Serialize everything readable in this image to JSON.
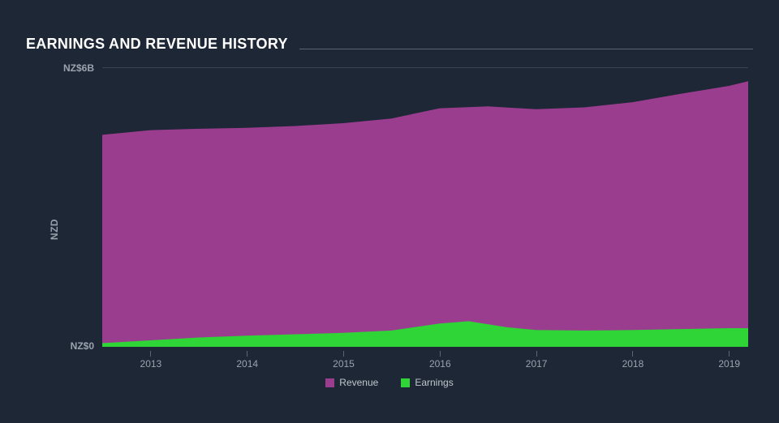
{
  "title": "EARNINGS AND REVENUE HISTORY",
  "chart": {
    "type": "area",
    "background_color": "#1d2735",
    "grid_color": "#3a4350",
    "tick_color": "#5c6470",
    "label_color": "#9aa3ae",
    "label_fontsize": 12,
    "title_color": "#ffffff",
    "title_fontsize": 18,
    "y_axis": {
      "title": "NZD",
      "min": 0,
      "max": 6,
      "top_label": "NZ$6B",
      "bottom_label": "NZ$0",
      "gridlines": [
        0,
        6
      ]
    },
    "x_axis": {
      "domain_min": 2012.5,
      "domain_max": 2019.2,
      "ticks": [
        2013,
        2014,
        2015,
        2016,
        2017,
        2018,
        2019
      ]
    },
    "series": [
      {
        "name": "Revenue",
        "color": "#9a3d8f",
        "fill_opacity": 1.0,
        "points": [
          {
            "x": 2012.5,
            "y": 4.55
          },
          {
            "x": 2013.0,
            "y": 4.65
          },
          {
            "x": 2013.5,
            "y": 4.68
          },
          {
            "x": 2014.0,
            "y": 4.7
          },
          {
            "x": 2014.5,
            "y": 4.74
          },
          {
            "x": 2015.0,
            "y": 4.8
          },
          {
            "x": 2015.5,
            "y": 4.9
          },
          {
            "x": 2016.0,
            "y": 5.12
          },
          {
            "x": 2016.5,
            "y": 5.16
          },
          {
            "x": 2017.0,
            "y": 5.1
          },
          {
            "x": 2017.5,
            "y": 5.14
          },
          {
            "x": 2018.0,
            "y": 5.25
          },
          {
            "x": 2018.5,
            "y": 5.43
          },
          {
            "x": 2019.0,
            "y": 5.6
          },
          {
            "x": 2019.2,
            "y": 5.7
          }
        ]
      },
      {
        "name": "Earnings",
        "color": "#2fd436",
        "fill_opacity": 1.0,
        "points": [
          {
            "x": 2012.5,
            "y": 0.08
          },
          {
            "x": 2013.0,
            "y": 0.14
          },
          {
            "x": 2013.5,
            "y": 0.2
          },
          {
            "x": 2014.0,
            "y": 0.24
          },
          {
            "x": 2014.5,
            "y": 0.27
          },
          {
            "x": 2015.0,
            "y": 0.3
          },
          {
            "x": 2015.5,
            "y": 0.35
          },
          {
            "x": 2016.0,
            "y": 0.5
          },
          {
            "x": 2016.3,
            "y": 0.55
          },
          {
            "x": 2016.7,
            "y": 0.42
          },
          {
            "x": 2017.0,
            "y": 0.36
          },
          {
            "x": 2017.5,
            "y": 0.35
          },
          {
            "x": 2018.0,
            "y": 0.36
          },
          {
            "x": 2018.5,
            "y": 0.38
          },
          {
            "x": 2019.0,
            "y": 0.4
          },
          {
            "x": 2019.2,
            "y": 0.4
          }
        ]
      }
    ],
    "legend": {
      "position": "bottom-center",
      "items": [
        {
          "label": "Revenue",
          "color": "#9a3d8f"
        },
        {
          "label": "Earnings",
          "color": "#2fd436"
        }
      ]
    }
  }
}
